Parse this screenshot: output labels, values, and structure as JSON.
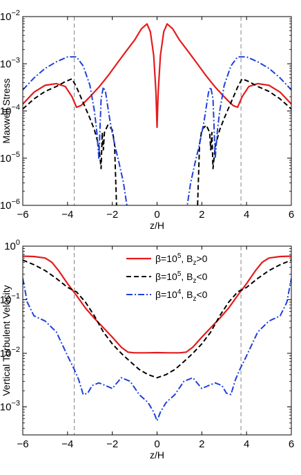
{
  "chart_data": [
    {
      "type": "line",
      "xlabel": "z/H",
      "ylabel": "Maxwell Stress",
      "xlim": [
        -6,
        6
      ],
      "ylim": [
        1e-06,
        0.01
      ],
      "yscale": "log",
      "xticks": [
        "−6",
        "−4",
        "−2",
        "0",
        "2",
        "4",
        "6"
      ],
      "yticks": [
        {
          "base": "10",
          "exp": "−6"
        },
        {
          "base": "10",
          "exp": "−5"
        },
        {
          "base": "10",
          "exp": "−4"
        },
        {
          "base": "10",
          "exp": "−3"
        },
        {
          "base": "10",
          "exp": "−2"
        }
      ],
      "vlines": [
        -3.7,
        3.75
      ],
      "series": [
        {
          "color": "#e41a1c",
          "dash": "solid",
          "x": [
            -6,
            -5.5,
            -5,
            -4.5,
            -4.1,
            -3.8,
            -3.6,
            -3.4,
            -3.2,
            -3.0,
            -2.6,
            -2.2,
            -1.8,
            -1.4,
            -1.0,
            -0.7,
            -0.45,
            -0.3,
            -0.15,
            -0.05,
            0,
            0.05,
            0.15,
            0.3,
            0.45,
            0.7,
            1.0,
            1.4,
            1.8,
            2.2,
            2.6,
            3.0,
            3.2,
            3.4,
            3.6,
            3.8,
            4.1,
            4.5,
            5,
            5.5,
            6
          ],
          "y": [
            0.00014,
            0.00025,
            0.00035,
            0.00038,
            0.00033,
            0.0002,
            0.00012,
            0.00013,
            0.00016,
            0.0002,
            0.00032,
            0.00055,
            0.001,
            0.0018,
            0.0032,
            0.0055,
            0.007,
            0.0048,
            0.0015,
            0.00025,
            4.5e-05,
            0.00025,
            0.0015,
            0.0048,
            0.007,
            0.0055,
            0.0032,
            0.0018,
            0.001,
            0.00055,
            0.00032,
            0.0002,
            0.00016,
            0.00013,
            0.00012,
            0.0002,
            0.00033,
            0.00038,
            0.00035,
            0.00025,
            0.00014
          ]
        },
        {
          "color": "#000000",
          "dash": "dashed",
          "x": [
            -6,
            -5.5,
            -5,
            -4.5,
            -4.1,
            -3.8,
            -3.6,
            -3.3,
            -3.0,
            -2.8,
            -2.6,
            -2.5,
            -2.45,
            -2.4,
            -2.35,
            -2.2,
            -2.0,
            -1.9,
            -1.8
          ],
          "y": [
            0.00011,
            0.00018,
            0.00026,
            0.00033,
            0.00042,
            0.00048,
            0.00032,
            0.00015,
            7e-05,
            4e-05,
            1.8e-05,
            6e-06,
            3.5e-05,
            1.5e-05,
            3.5e-05,
            5e-05,
            4e-05,
            2e-05,
            7e-07
          ]
        },
        {
          "color": "#000000",
          "dash": "dashed",
          "x": [
            1.8,
            1.9,
            2.0,
            2.2,
            2.35,
            2.4,
            2.45,
            2.5,
            2.6,
            2.8,
            3.0,
            3.3,
            3.6,
            3.8,
            4.1,
            4.5,
            5,
            5.5,
            6
          ],
          "y": [
            7e-07,
            2e-05,
            4e-05,
            5e-05,
            3.5e-05,
            1.5e-05,
            3.5e-05,
            6e-06,
            1.8e-05,
            4e-05,
            7e-05,
            0.00015,
            0.00032,
            0.00048,
            0.00042,
            0.00033,
            0.00026,
            0.00018,
            0.00011
          ]
        },
        {
          "color": "#1f3fdc",
          "dash": "dashdot",
          "x": [
            -6,
            -5.5,
            -5,
            -4.5,
            -4.0,
            -3.6,
            -3.3,
            -3.0,
            -2.8,
            -2.7,
            -2.6,
            -2.5,
            -2.4,
            -2.3,
            -2.1,
            -1.9,
            -1.7,
            -1.5,
            -1.3
          ],
          "y": [
            0.00028,
            0.0005,
            0.0008,
            0.0011,
            0.0014,
            0.0014,
            0.0009,
            0.00035,
            0.0001,
            4e-05,
            1e-05,
            0.00018,
            0.00032,
            0.00025,
            6e-05,
            2e-05,
            8e-06,
            3e-06,
            7e-07
          ]
        },
        {
          "color": "#1f3fdc",
          "dash": "dashdot",
          "x": [
            1.3,
            1.5,
            1.7,
            1.9,
            2.1,
            2.3,
            2.4,
            2.5,
            2.6,
            2.7,
            2.8,
            3.0,
            3.3,
            3.6,
            4.0,
            4.5,
            5,
            5.5,
            6
          ],
          "y": [
            7e-07,
            3e-06,
            8e-06,
            2e-05,
            6e-05,
            0.00025,
            0.00032,
            0.00018,
            1e-05,
            4e-05,
            0.0001,
            0.00035,
            0.0009,
            0.0014,
            0.0014,
            0.0011,
            0.0008,
            0.0005,
            0.00028
          ]
        }
      ]
    },
    {
      "type": "line",
      "xlabel": "z/H",
      "ylabel": "Vertical Turbulent Velocity",
      "xlim": [
        -6,
        6
      ],
      "ylim": [
        0.0003,
        1
      ],
      "yscale": "log",
      "xticks": [
        "−6",
        "−4",
        "−2",
        "0",
        "2",
        "4",
        "6"
      ],
      "yticks": [
        {
          "base": "10",
          "exp": "−3"
        },
        {
          "base": "10",
          "exp": "−2"
        },
        {
          "base": "10",
          "exp": "−1"
        },
        {
          "base": "10",
          "exp": "0"
        }
      ],
      "vlines": [
        -3.7,
        3.75
      ],
      "legend": [
        {
          "beta_base": "β=10",
          "beta_exp": "5",
          "field": ", B",
          "field_sub": "z",
          "sign": ">0",
          "color": "#e41a1c",
          "dash": "solid"
        },
        {
          "beta_base": "β=10",
          "beta_exp": "5",
          "field": ", B",
          "field_sub": "z",
          "sign": "<0",
          "color": "#000000",
          "dash": "dashed"
        },
        {
          "beta_base": "β=10",
          "beta_exp": "4",
          "field": ", B",
          "field_sub": "z",
          "sign": "<0",
          "color": "#1f3fdc",
          "dash": "dashdot"
        }
      ],
      "series": [
        {
          "color": "#e41a1c",
          "dash": "solid",
          "x": [
            -6,
            -5.5,
            -5,
            -4.7,
            -4.4,
            -4.0,
            -3.6,
            -3.2,
            -2.8,
            -2.4,
            -2.0,
            -1.6,
            -1.3,
            -1.0,
            -0.5,
            0,
            0.5,
            1.0,
            1.3,
            1.6,
            2.0,
            2.4,
            2.8,
            3.2,
            3.6,
            4.0,
            4.4,
            4.7,
            5,
            5.5,
            6
          ],
          "y": [
            0.65,
            0.64,
            0.6,
            0.5,
            0.35,
            0.2,
            0.12,
            0.07,
            0.045,
            0.03,
            0.02,
            0.013,
            0.0105,
            0.0102,
            0.0102,
            0.0103,
            0.0102,
            0.0102,
            0.0105,
            0.013,
            0.02,
            0.03,
            0.045,
            0.07,
            0.12,
            0.2,
            0.35,
            0.5,
            0.6,
            0.64,
            0.65
          ]
        },
        {
          "color": "#000000",
          "dash": "dashed",
          "x": [
            -6,
            -5.5,
            -5,
            -4.5,
            -4.0,
            -3.6,
            -3.2,
            -2.8,
            -2.4,
            -2.0,
            -1.6,
            -1.2,
            -0.8,
            -0.4,
            0,
            0.4,
            0.8,
            1.2,
            1.6,
            2.0,
            2.4,
            2.8,
            3.2,
            3.6,
            4.0,
            4.5,
            5,
            5.5,
            6
          ],
          "y": [
            0.55,
            0.45,
            0.35,
            0.25,
            0.17,
            0.14,
            0.09,
            0.05,
            0.025,
            0.015,
            0.01,
            0.007,
            0.005,
            0.004,
            0.0035,
            0.004,
            0.005,
            0.007,
            0.01,
            0.015,
            0.025,
            0.05,
            0.09,
            0.14,
            0.17,
            0.25,
            0.35,
            0.45,
            0.55
          ]
        },
        {
          "color": "#1f3fdc",
          "dash": "dashdot",
          "x": [
            -6,
            -5.8,
            -5.5,
            -5.0,
            -4.5,
            -4.0,
            -3.7,
            -3.5,
            -3.3,
            -3.1,
            -2.9,
            -2.6,
            -2.3,
            -2.0,
            -1.6,
            -1.2,
            -0.8,
            -0.4,
            -0.15,
            0,
            0.15,
            0.4,
            0.8,
            1.2,
            1.6,
            2.0,
            2.3,
            2.6,
            2.9,
            3.1,
            3.3,
            3.5,
            3.7,
            4.0,
            4.5,
            5.0,
            5.5,
            5.8,
            6
          ],
          "y": [
            0.25,
            0.09,
            0.05,
            0.04,
            0.025,
            0.009,
            0.005,
            0.0032,
            0.0017,
            0.0018,
            0.0025,
            0.0028,
            0.0025,
            0.0022,
            0.0035,
            0.003,
            0.0017,
            0.0012,
            0.0008,
            0.00055,
            0.0008,
            0.0012,
            0.0017,
            0.003,
            0.0035,
            0.0022,
            0.0025,
            0.0028,
            0.0025,
            0.0018,
            0.0017,
            0.0032,
            0.005,
            0.009,
            0.025,
            0.04,
            0.05,
            0.09,
            0.25
          ]
        }
      ]
    }
  ]
}
